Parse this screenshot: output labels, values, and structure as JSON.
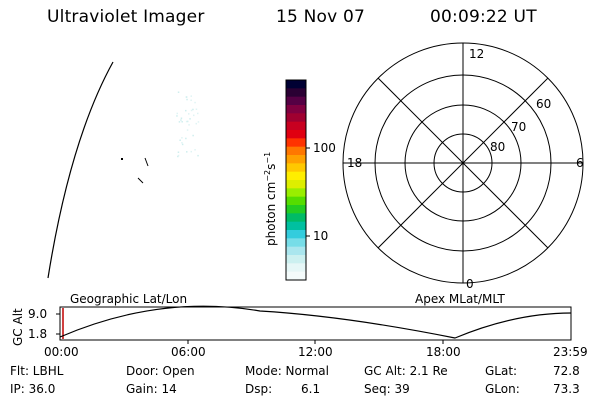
{
  "header": {
    "instrument": "Ultraviolet Imager",
    "date": "15 Nov 07",
    "time": "00:09:22 UT"
  },
  "colorbar": {
    "label": "photon cm⁻²s⁻¹",
    "ticks": [
      "100",
      "10"
    ],
    "colors": [
      "#000033",
      "#2a0033",
      "#550044",
      "#800040",
      "#a00030",
      "#c80020",
      "#e00010",
      "#ff3300",
      "#ff7700",
      "#ffa000",
      "#ffc800",
      "#ffee00",
      "#ddee00",
      "#99ee00",
      "#55dd00",
      "#22cc22",
      "#00bb66",
      "#00c0a0",
      "#33ccdd",
      "#77dde8",
      "#aae6ee",
      "#ccf0f0",
      "#e6f7f7",
      "#f4fbfb"
    ]
  },
  "polar_plot": {
    "mlt_labels": [
      "12",
      "18",
      "6",
      "0"
    ],
    "lat_labels": [
      "60",
      "70",
      "80"
    ]
  },
  "timeline": {
    "ylabel": "GC Alt",
    "yticks": [
      "9.0",
      "1.8"
    ],
    "left_label": "Geographic Lat/Lon",
    "right_label": "Apex MLat/MLT",
    "xticks": [
      "00:00",
      "06:00",
      "12:00",
      "18:00",
      "23:59"
    ],
    "current_marker_color": "#c00000"
  },
  "status": {
    "filter": "Flt: LBHL",
    "ip": "IP: 36.0",
    "door": "Door: Open",
    "gain": "Gain: 14",
    "mode": "Mode: Normal",
    "dsp_label": "Dsp:",
    "dsp_value": "6.1",
    "gc_alt": "GC Alt: 2.1 Re",
    "seq": "Seq: 39",
    "glat": "GLat:",
    "glat_value": "72.8",
    "glon": "GLon:",
    "glon_value": "73.3"
  }
}
